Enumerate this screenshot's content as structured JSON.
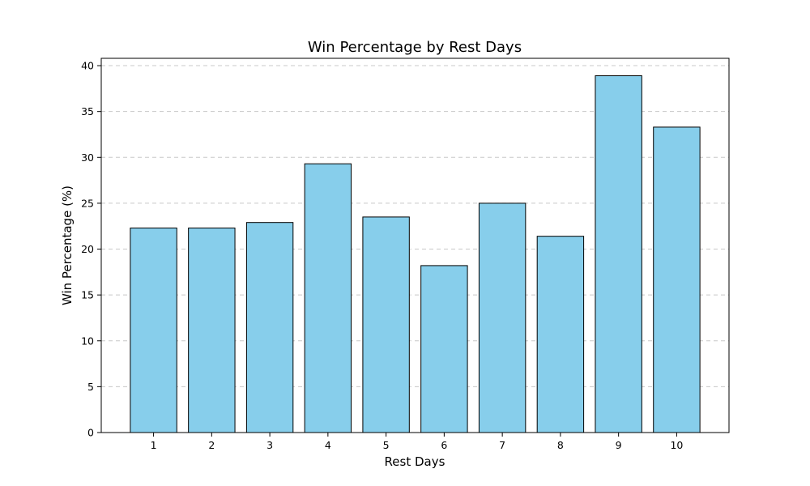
{
  "chart_data": {
    "type": "bar",
    "title": "Win Percentage by Rest Days",
    "xlabel": "Rest Days",
    "ylabel": "Win Percentage (%)",
    "categories": [
      "1",
      "2",
      "3",
      "4",
      "5",
      "6",
      "7",
      "8",
      "9",
      "10"
    ],
    "values": [
      22.3,
      22.3,
      22.9,
      29.3,
      23.5,
      18.2,
      25.0,
      21.4,
      38.9,
      33.3
    ],
    "ylim": [
      0,
      40.8
    ],
    "yticks": [
      0,
      5,
      10,
      15,
      20,
      25,
      30,
      35,
      40
    ],
    "grid": "y-dashed",
    "legend": "none",
    "colors": {
      "bar": "#87CEEB",
      "edge": "#000000",
      "grid": "#c8c8c8"
    }
  }
}
